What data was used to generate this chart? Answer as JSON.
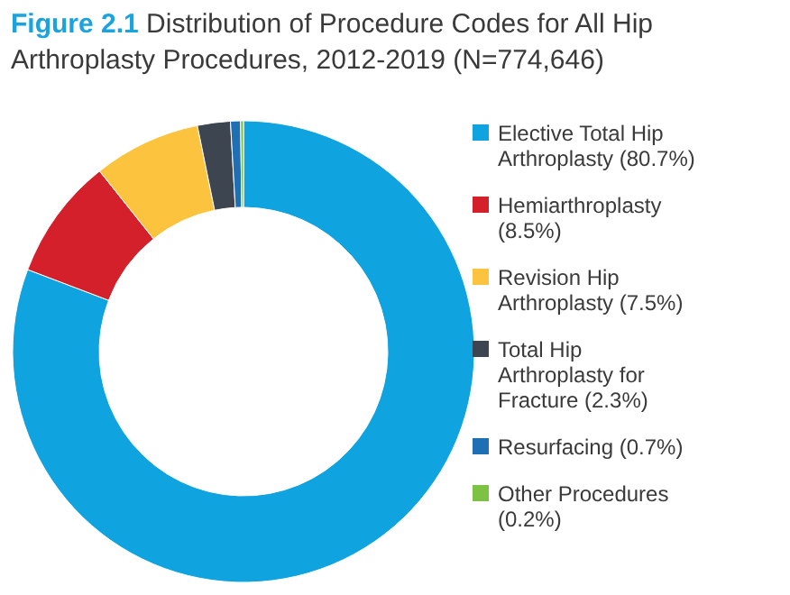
{
  "chart_data": {
    "type": "donut",
    "title": "Figure 2.1 Distribution of Procedure Codes for All Hip Arthroplasty Procedures, 2012-2019 (N=774,646)",
    "categories": [
      "Elective Total Hip Arthroplasty (80.7%)",
      "Hemiarthroplasty (8.5%)",
      "Revision Hip Arthroplasty (7.5%)",
      "Total Hip Arthroplasty for Fracture (2.3%)",
      "Resurfacing (0.7%)",
      "Other Procedures (0.2%)"
    ],
    "values": [
      80.7,
      8.5,
      7.5,
      2.3,
      0.7,
      0.2
    ],
    "colors": [
      "#0fa3e0",
      "#d3202a",
      "#fcc33e",
      "#3d4650",
      "#1f6fb5",
      "#7dc242"
    ],
    "legend": "right"
  }
}
